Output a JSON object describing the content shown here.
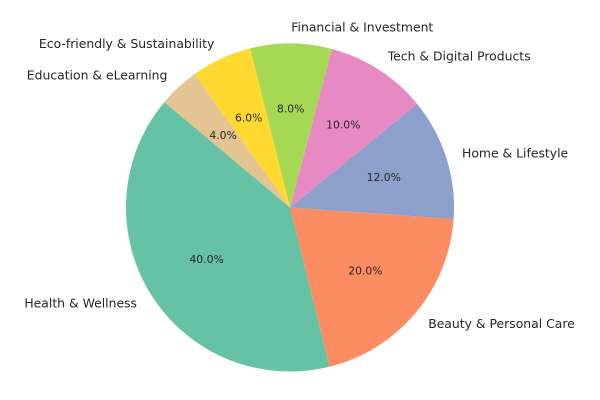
{
  "figure": {
    "background_color": "#ffffff",
    "text_color": "#262626",
    "title": ""
  },
  "chart_data": {
    "type": "pie",
    "title": "",
    "legend": "none",
    "grid": false,
    "categories": [
      "Health & Wellness",
      "Beauty & Personal Care",
      "Home & Lifestyle",
      "Tech & Digital Products",
      "Financial & Investment",
      "Eco-friendly & Sustainability",
      "Education & eLearning"
    ],
    "values": [
      40.0,
      20.0,
      12.0,
      10.0,
      8.0,
      6.0,
      4.0
    ],
    "slices": [
      {
        "label": "Health & Wellness",
        "value": 40.0,
        "pct_label": "40.0%",
        "color": "#66c2a5"
      },
      {
        "label": "Beauty & Personal Care",
        "value": 20.0,
        "pct_label": "20.0%",
        "color": "#fc8d62"
      },
      {
        "label": "Home & Lifestyle",
        "value": 12.0,
        "pct_label": "12.0%",
        "color": "#8da0cb"
      },
      {
        "label": "Tech & Digital Products",
        "value": 10.0,
        "pct_label": "10.0%",
        "color": "#e78ac3"
      },
      {
        "label": "Financial & Investment",
        "value": 8.0,
        "pct_label": "8.0%",
        "color": "#a6d854"
      },
      {
        "label": "Eco-friendly & Sustainability",
        "value": 6.0,
        "pct_label": "6.0%",
        "color": "#ffd92f"
      },
      {
        "label": "Education & eLearning",
        "value": 4.0,
        "pct_label": "4.0%",
        "color": "#e5c494"
      }
    ],
    "layout_hints": {
      "start_angle_deg": 140,
      "counterclock": true,
      "label_distance": 1.1,
      "pct_distance": 0.6
    }
  }
}
